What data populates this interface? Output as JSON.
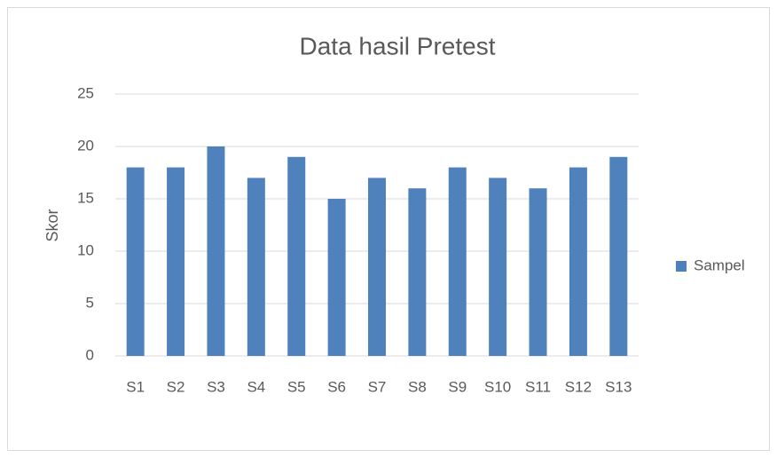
{
  "chart_data": {
    "type": "bar",
    "title": "Data hasil Pretest",
    "y_label": "Skor",
    "categories": [
      "S1",
      "S2",
      "S3",
      "S4",
      "S5",
      "S6",
      "S7",
      "S8",
      "S9",
      "S10",
      "S11",
      "S12",
      "S13"
    ],
    "series": [
      {
        "name": "Sampel",
        "color": "#4f81bd",
        "values": [
          18,
          18,
          20,
          17,
          19,
          15,
          17,
          16,
          18,
          17,
          16,
          18,
          19
        ]
      }
    ],
    "ylim": [
      0,
      25
    ],
    "yticks": [
      0,
      5,
      10,
      15,
      20,
      25
    ],
    "grid": true,
    "legend": "right"
  }
}
